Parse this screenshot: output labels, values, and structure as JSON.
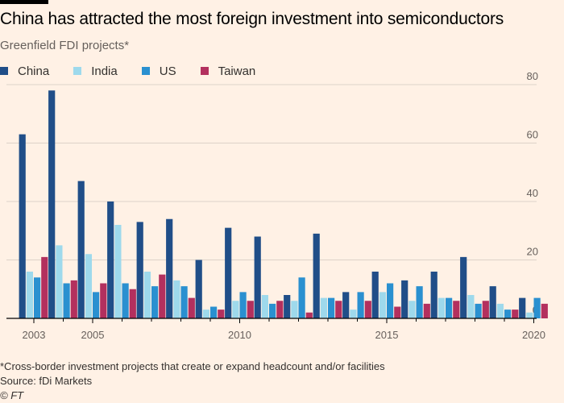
{
  "title": "China has attracted the most foreign investment into semiconductors",
  "subtitle": "Greenfield FDI projects*",
  "footnote": "*Cross-border investment projects that create or expand headcount and/or facilities",
  "source": "Source: fDi Markets",
  "credit": "© FT",
  "colors": {
    "background": "#fff1e5",
    "China": "#204e88",
    "India": "#9ed9ec",
    "US": "#2a90d0",
    "Taiwan": "#b3305e",
    "grid": "#dcd2c9",
    "axis": "#66605c"
  },
  "chart_data": {
    "type": "bar",
    "title": "China has attracted the most foreign investment into semiconductors",
    "ylabel": "Greenfield FDI projects*",
    "xlabel": "",
    "ylim": [
      0,
      80
    ],
    "yticks": [
      "0",
      "20",
      "40",
      "60",
      "80"
    ],
    "legend_position": "top-left",
    "categories": [
      "2003",
      "2004",
      "2005",
      "2006",
      "2007",
      "2008",
      "2009",
      "2010",
      "2011",
      "2012",
      "2013",
      "2014",
      "2015",
      "2016",
      "2017",
      "2018",
      "2019",
      "2020"
    ],
    "xtick_labels": [
      "2003",
      "2005",
      "2010",
      "2015",
      "2020"
    ],
    "series": [
      {
        "name": "China",
        "values": [
          63,
          78,
          47,
          40,
          33,
          34,
          20,
          31,
          28,
          8,
          29,
          9,
          16,
          13,
          16,
          21,
          11,
          7
        ]
      },
      {
        "name": "India",
        "values": [
          16,
          25,
          22,
          32,
          16,
          13,
          3,
          6,
          8,
          6,
          7,
          3,
          9,
          6,
          7,
          8,
          5,
          2
        ]
      },
      {
        "name": "US",
        "values": [
          14,
          12,
          9,
          12,
          11,
          11,
          4,
          9,
          5,
          14,
          7,
          9,
          12,
          11,
          7,
          5,
          3,
          7
        ]
      },
      {
        "name": "Taiwan",
        "values": [
          21,
          13,
          12,
          10,
          15,
          7,
          3,
          6,
          6,
          2,
          6,
          6,
          4,
          5,
          6,
          6,
          3,
          5
        ]
      }
    ]
  }
}
